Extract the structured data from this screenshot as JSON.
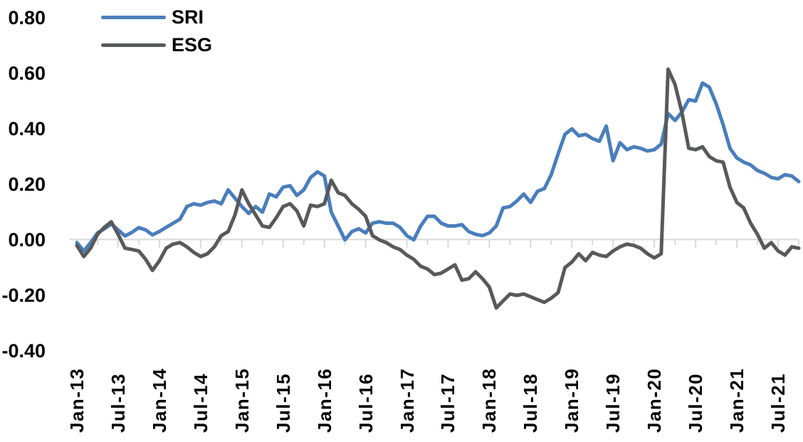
{
  "chart_data": {
    "type": "line",
    "title": "",
    "x_unit": "month",
    "x_start": "Jan-13",
    "x_end": "Oct-21",
    "x_tick_labels": [
      "Jan-13",
      "Jul-13",
      "Jan-14",
      "Jul-14",
      "Jan-15",
      "Jul-15",
      "Jan-16",
      "Jul-16",
      "Jan-17",
      "Jul-17",
      "Jan-18",
      "Jul-18",
      "Jan-19",
      "Jul-19",
      "Jan-20",
      "Jul-20",
      "Jan-21",
      "Jul-21"
    ],
    "y_tick_labels": [
      "0.80",
      "0.60",
      "0.40",
      "0.20",
      "0.00",
      "-0.20",
      "-0.40"
    ],
    "ylim": [
      -0.4,
      0.8
    ],
    "grid": "zero-line-only",
    "legend_position": "top-left",
    "series": [
      {
        "name": "SRI",
        "color": "#4A7EBB",
        "values": [
          -0.01,
          -0.04,
          -0.01,
          0.025,
          0.04,
          0.057,
          0.036,
          0.014,
          0.027,
          0.044,
          0.036,
          0.018,
          0.03,
          0.045,
          0.06,
          0.075,
          0.12,
          0.13,
          0.125,
          0.135,
          0.14,
          0.13,
          0.18,
          0.15,
          0.12,
          0.095,
          0.12,
          0.1,
          0.165,
          0.155,
          0.19,
          0.195,
          0.16,
          0.18,
          0.225,
          0.245,
          0.23,
          0.1,
          0.05,
          0.0,
          0.03,
          0.04,
          0.025,
          0.06,
          0.065,
          0.06,
          0.06,
          0.045,
          0.015,
          0.0,
          0.05,
          0.085,
          0.085,
          0.06,
          0.05,
          0.05,
          0.055,
          0.03,
          0.02,
          0.015,
          0.025,
          0.05,
          0.115,
          0.12,
          0.14,
          0.165,
          0.135,
          0.175,
          0.185,
          0.235,
          0.31,
          0.38,
          0.4,
          0.375,
          0.38,
          0.365,
          0.355,
          0.41,
          0.285,
          0.35,
          0.325,
          0.335,
          0.33,
          0.32,
          0.325,
          0.345,
          0.455,
          0.43,
          0.46,
          0.505,
          0.5,
          0.565,
          0.55,
          0.49,
          0.415,
          0.33,
          0.295,
          0.28,
          0.27,
          0.25,
          0.24,
          0.225,
          0.22,
          0.235,
          0.23,
          0.21
        ]
      },
      {
        "name": "ESG",
        "color": "#58595B",
        "values": [
          -0.02,
          -0.06,
          -0.03,
          0.02,
          0.045,
          0.065,
          0.02,
          -0.03,
          -0.035,
          -0.04,
          -0.07,
          -0.11,
          -0.075,
          -0.03,
          -0.015,
          -0.01,
          -0.025,
          -0.045,
          -0.06,
          -0.05,
          -0.025,
          0.015,
          0.03,
          0.09,
          0.18,
          0.13,
          0.09,
          0.05,
          0.045,
          0.08,
          0.12,
          0.13,
          0.105,
          0.05,
          0.125,
          0.12,
          0.13,
          0.215,
          0.17,
          0.16,
          0.13,
          0.11,
          0.085,
          0.015,
          0.0,
          -0.01,
          -0.025,
          -0.035,
          -0.055,
          -0.07,
          -0.095,
          -0.105,
          -0.125,
          -0.12,
          -0.105,
          -0.09,
          -0.145,
          -0.14,
          -0.115,
          -0.14,
          -0.17,
          -0.245,
          -0.22,
          -0.195,
          -0.2,
          -0.195,
          -0.205,
          -0.215,
          -0.225,
          -0.21,
          -0.19,
          -0.1,
          -0.08,
          -0.05,
          -0.075,
          -0.045,
          -0.055,
          -0.06,
          -0.04,
          -0.025,
          -0.015,
          -0.02,
          -0.03,
          -0.05,
          -0.065,
          -0.05,
          0.615,
          0.56,
          0.46,
          0.33,
          0.325,
          0.335,
          0.3,
          0.285,
          0.28,
          0.19,
          0.135,
          0.115,
          0.06,
          0.02,
          -0.03,
          -0.01,
          -0.04,
          -0.055,
          -0.025,
          -0.03
        ]
      }
    ]
  },
  "colors": {
    "background": "#FFFFFF",
    "axis_line": "#D9D9D9",
    "text": "#000000"
  }
}
